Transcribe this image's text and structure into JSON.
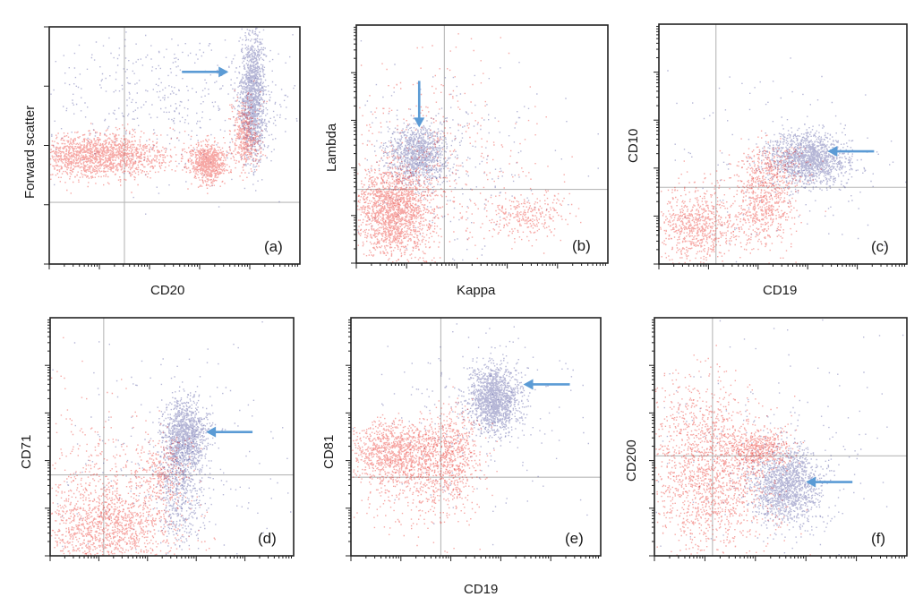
{
  "colors": {
    "gated": "#e8221c",
    "target": "#2a2f8a",
    "arrow": "#5b9bd5",
    "quadrant": "#b8b8b8"
  },
  "chart_data": [
    {
      "type": "scatter",
      "panel_label": "(a)",
      "xlabel": "CD20",
      "ylabel": "Forward scatter",
      "x_scale": "log",
      "y_scale": "linear",
      "xlim": [
        0,
        1
      ],
      "ylim": [
        0,
        1
      ],
      "quadrant": {
        "x": 0.3,
        "y": 0.26
      },
      "series": [
        {
          "color_key": "target",
          "clusters": [
            {
              "x": 0.81,
              "y": 0.71,
              "sx": 0.025,
              "sy": 0.13,
              "n": 1400,
              "o": 0.35
            },
            {
              "x": 0.5,
              "y": 0.7,
              "sx": 0.3,
              "sy": 0.15,
              "n": 500,
              "o": 0.35
            }
          ]
        },
        {
          "color_key": "gated",
          "clusters": [
            {
              "x": 0.19,
              "y": 0.46,
              "sx": 0.15,
              "sy": 0.045,
              "n": 1700,
              "o": 0.4
            },
            {
              "x": 0.63,
              "y": 0.43,
              "sx": 0.035,
              "sy": 0.04,
              "n": 700,
              "o": 0.4
            },
            {
              "x": 0.78,
              "y": 0.54,
              "sx": 0.03,
              "sy": 0.07,
              "n": 450,
              "o": 0.4
            }
          ]
        }
      ],
      "arrow": {
        "direction": "right",
        "x": 0.715,
        "y": 0.81
      }
    },
    {
      "type": "scatter",
      "panel_label": "(b)",
      "xlabel": "Kappa",
      "ylabel": "Lambda",
      "x_scale": "log",
      "y_scale": "log",
      "xlim": [
        0,
        1
      ],
      "ylim": [
        0,
        1
      ],
      "quadrant": {
        "x": 0.35,
        "y": 0.31
      },
      "series": [
        {
          "color_key": "target",
          "clusters": [
            {
              "x": 0.24,
              "y": 0.46,
              "sx": 0.06,
              "sy": 0.06,
              "n": 1100,
              "o": 0.35
            },
            {
              "x": 0.35,
              "y": 0.4,
              "sx": 0.22,
              "sy": 0.2,
              "n": 260,
              "o": 0.35
            }
          ]
        },
        {
          "color_key": "gated",
          "clusters": [
            {
              "x": 0.15,
              "y": 0.22,
              "sx": 0.07,
              "sy": 0.09,
              "n": 1700,
              "o": 0.4
            },
            {
              "x": 0.68,
              "y": 0.2,
              "sx": 0.08,
              "sy": 0.045,
              "n": 280,
              "o": 0.4
            },
            {
              "x": 0.28,
              "y": 0.38,
              "sx": 0.2,
              "sy": 0.22,
              "n": 550,
              "o": 0.4
            }
          ]
        }
      ],
      "arrow": {
        "direction": "down",
        "x": 0.25,
        "y": 0.57
      }
    },
    {
      "type": "scatter",
      "panel_label": "(c)",
      "xlabel": "CD19",
      "ylabel": "CD10",
      "x_scale": "log",
      "y_scale": "log",
      "xlim": [
        0,
        1
      ],
      "ylim": [
        0,
        1
      ],
      "quadrant": {
        "x": 0.23,
        "y": 0.32
      },
      "series": [
        {
          "color_key": "target",
          "clusters": [
            {
              "x": 0.6,
              "y": 0.44,
              "sx": 0.08,
              "sy": 0.055,
              "n": 1500,
              "o": 0.35
            },
            {
              "x": 0.5,
              "y": 0.4,
              "sx": 0.25,
              "sy": 0.2,
              "n": 150,
              "o": 0.35
            }
          ]
        },
        {
          "color_key": "gated",
          "clusters": [
            {
              "x": 0.15,
              "y": 0.16,
              "sx": 0.08,
              "sy": 0.08,
              "n": 750,
              "o": 0.4
            },
            {
              "x": 0.42,
              "y": 0.23,
              "sx": 0.06,
              "sy": 0.08,
              "n": 500,
              "o": 0.4
            },
            {
              "x": 0.45,
              "y": 0.4,
              "sx": 0.07,
              "sy": 0.06,
              "n": 350,
              "o": 0.4
            }
          ]
        }
      ],
      "arrow": {
        "direction": "left",
        "x": 0.68,
        "y": 0.47
      }
    },
    {
      "type": "scatter",
      "panel_label": "(d)",
      "xlabel": "",
      "ylabel": "CD71",
      "x_scale": "log",
      "y_scale": "log",
      "xlim": [
        0,
        1
      ],
      "ylim": [
        0,
        1
      ],
      "quadrant": {
        "x": 0.22,
        "y": 0.34
      },
      "series": [
        {
          "color_key": "target",
          "clusters": [
            {
              "x": 0.55,
              "y": 0.5,
              "sx": 0.045,
              "sy": 0.08,
              "n": 1200,
              "o": 0.35
            },
            {
              "x": 0.53,
              "y": 0.26,
              "sx": 0.05,
              "sy": 0.11,
              "n": 500,
              "o": 0.35
            },
            {
              "x": 0.5,
              "y": 0.45,
              "sx": 0.25,
              "sy": 0.25,
              "n": 200,
              "o": 0.35
            }
          ]
        },
        {
          "color_key": "gated",
          "clusters": [
            {
              "x": 0.23,
              "y": 0.12,
              "sx": 0.14,
              "sy": 0.1,
              "n": 1400,
              "o": 0.4
            },
            {
              "x": 0.46,
              "y": 0.36,
              "sx": 0.06,
              "sy": 0.08,
              "n": 300,
              "o": 0.4
            },
            {
              "x": 0.15,
              "y": 0.35,
              "sx": 0.15,
              "sy": 0.2,
              "n": 250,
              "o": 0.4
            }
          ]
        }
      ],
      "arrow": {
        "direction": "left",
        "x": 0.64,
        "y": 0.52
      }
    },
    {
      "type": "scatter",
      "panel_label": "(e)",
      "xlabel": "CD19",
      "ylabel": "CD81",
      "x_scale": "log",
      "y_scale": "log",
      "xlim": [
        0,
        1
      ],
      "ylim": [
        0,
        1
      ],
      "quadrant": {
        "x": 0.36,
        "y": 0.33
      },
      "series": [
        {
          "color_key": "target",
          "clusters": [
            {
              "x": 0.57,
              "y": 0.66,
              "sx": 0.05,
              "sy": 0.07,
              "n": 1400,
              "o": 0.35
            },
            {
              "x": 0.52,
              "y": 0.6,
              "sx": 0.2,
              "sy": 0.2,
              "n": 220,
              "o": 0.35
            }
          ]
        },
        {
          "color_key": "gated",
          "clusters": [
            {
              "x": 0.18,
              "y": 0.44,
              "sx": 0.1,
              "sy": 0.06,
              "n": 1100,
              "o": 0.4
            },
            {
              "x": 0.4,
              "y": 0.44,
              "sx": 0.06,
              "sy": 0.09,
              "n": 550,
              "o": 0.4
            },
            {
              "x": 0.28,
              "y": 0.3,
              "sx": 0.12,
              "sy": 0.1,
              "n": 400,
              "o": 0.4
            }
          ]
        }
      ],
      "arrow": {
        "direction": "left",
        "x": 0.69,
        "y": 0.72
      }
    },
    {
      "type": "scatter",
      "panel_label": "(f)",
      "xlabel": "",
      "ylabel": "CD200",
      "x_scale": "log",
      "y_scale": "log",
      "xlim": [
        0,
        1
      ],
      "ylim": [
        0,
        1
      ],
      "quadrant": {
        "x": 0.23,
        "y": 0.42
      },
      "series": [
        {
          "color_key": "target",
          "clusters": [
            {
              "x": 0.52,
              "y": 0.3,
              "sx": 0.07,
              "sy": 0.08,
              "n": 1400,
              "o": 0.35
            },
            {
              "x": 0.5,
              "y": 0.45,
              "sx": 0.3,
              "sy": 0.3,
              "n": 220,
              "o": 0.35
            }
          ]
        },
        {
          "color_key": "gated",
          "clusters": [
            {
              "x": 0.22,
              "y": 0.32,
              "sx": 0.13,
              "sy": 0.16,
              "n": 1500,
              "o": 0.4
            },
            {
              "x": 0.42,
              "y": 0.45,
              "sx": 0.06,
              "sy": 0.04,
              "n": 450,
              "o": 0.4
            },
            {
              "x": 0.18,
              "y": 0.55,
              "sx": 0.12,
              "sy": 0.12,
              "n": 300,
              "o": 0.4
            }
          ]
        }
      ],
      "arrow": {
        "direction": "left",
        "x": 0.6,
        "y": 0.31
      }
    }
  ]
}
